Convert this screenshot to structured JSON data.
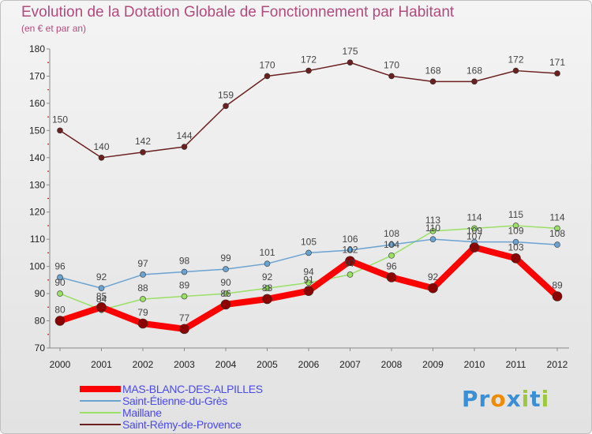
{
  "chart_data": {
    "type": "line",
    "title": "Evolution de la Dotation Globale de Fonctionnement par Habitant",
    "subtitle": "(en € et par an)",
    "xlabel": "",
    "ylabel": "",
    "x": [
      "2000",
      "2001",
      "2002",
      "2003",
      "2004",
      "2005",
      "2006",
      "2007",
      "2008",
      "2009",
      "2010",
      "2011",
      "2012"
    ],
    "ylim": [
      70,
      180
    ],
    "yticks": [
      70,
      80,
      90,
      100,
      110,
      120,
      130,
      140,
      150,
      160,
      170,
      180
    ],
    "grid": false,
    "legend_position": "bottom-left",
    "series": [
      {
        "name": "Saint-Rémy-de-Provence",
        "color": "#6b1f1f",
        "values": [
          150,
          140,
          142,
          144,
          159,
          170,
          172,
          175,
          170,
          168,
          168,
          172,
          171
        ]
      },
      {
        "name": "Maillane",
        "color": "#99e065",
        "values": [
          90,
          84,
          88,
          89,
          90,
          92,
          94,
          97,
          104,
          113,
          114,
          115,
          114
        ]
      },
      {
        "name": "Saint-Étienne-du-Grès",
        "color": "#6aa2d2",
        "values": [
          96,
          92,
          97,
          98,
          99,
          101,
          105,
          106,
          108,
          110,
          109,
          109,
          108
        ]
      },
      {
        "name": "MAS-BLANC-DES-ALPILLES",
        "color": "#ff0000",
        "values": [
          80,
          85,
          79,
          77,
          86,
          88,
          91,
          102,
          96,
          92,
          107,
          103,
          89
        ]
      }
    ]
  },
  "legend": [
    {
      "label": "MAS-BLANC-DES-ALPILLES",
      "color": "#ff0000",
      "thickness": 8
    },
    {
      "label": "Saint-Étienne-du-Grès",
      "color": "#6aa2d2",
      "thickness": 2
    },
    {
      "label": "Maillane",
      "color": "#99e065",
      "thickness": 2
    },
    {
      "label": "Saint-Rémy-de-Provence",
      "color": "#6b1f1f",
      "thickness": 2
    }
  ],
  "logo": {
    "letters": [
      {
        "char": "P",
        "color": "#3a8fd6"
      },
      {
        "char": "r",
        "color": "#3a8fd6"
      },
      {
        "char": "o",
        "color": "#f08a00"
      },
      {
        "char": "x",
        "color": "#3a8fd6"
      },
      {
        "char": "i",
        "color": "#9bc83c"
      },
      {
        "char": "t",
        "color": "#3a8fd6"
      },
      {
        "char": "i",
        "color": "#9bc83c"
      }
    ]
  }
}
